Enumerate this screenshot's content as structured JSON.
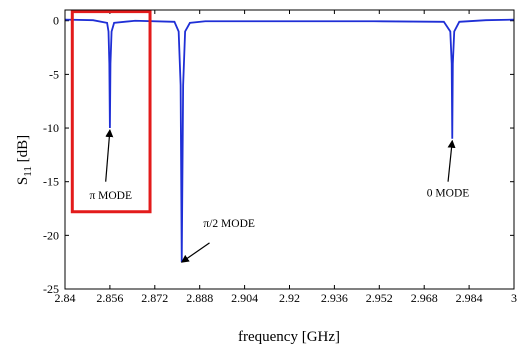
{
  "chart_data": {
    "type": "line",
    "title": "",
    "xlabel": "frequency [GHz]",
    "ylabel": "S",
    "ylabel_subscript": "11",
    "ylabel_unit": " [dB]",
    "xlim": [
      2.84,
      3.0
    ],
    "ylim": [
      -25,
      1
    ],
    "xticks": [
      2.84,
      2.856,
      2.872,
      2.888,
      2.904,
      2.92,
      2.936,
      2.952,
      2.968,
      2.984,
      3.0
    ],
    "xtick_labels": [
      "2.84",
      "2.856",
      "2.872",
      "2.888",
      "2.904",
      "2.92",
      "2.936",
      "2.952",
      "2.968",
      "2.984",
      "3"
    ],
    "yticks": [
      0,
      -5,
      -10,
      -15,
      -20,
      -25
    ],
    "ytick_labels": [
      "0",
      "-5",
      "-10",
      "-15",
      "-20",
      "-25"
    ],
    "grid": false,
    "line_color": "#1f2fd6",
    "highlight_box_color": "#e31b1b",
    "series": [
      {
        "values": [
          {
            "x": 2.84,
            "y": 0.1
          },
          {
            "x": 2.85,
            "y": 0.05
          },
          {
            "x": 2.855,
            "y": -0.2
          },
          {
            "x": 2.8555,
            "y": -1.0
          },
          {
            "x": 2.8558,
            "y": -4.0
          },
          {
            "x": 2.856,
            "y": -10.0
          },
          {
            "x": 2.8562,
            "y": -4.0
          },
          {
            "x": 2.8566,
            "y": -1.0
          },
          {
            "x": 2.8575,
            "y": -0.2
          },
          {
            "x": 2.865,
            "y": 0.0
          },
          {
            "x": 2.879,
            "y": -0.1
          },
          {
            "x": 2.8805,
            "y": -1.0
          },
          {
            "x": 2.8812,
            "y": -6.0
          },
          {
            "x": 2.8816,
            "y": -22.5
          },
          {
            "x": 2.8821,
            "y": -6.0
          },
          {
            "x": 2.8828,
            "y": -1.0
          },
          {
            "x": 2.8845,
            "y": -0.2
          },
          {
            "x": 2.89,
            "y": -0.05
          },
          {
            "x": 2.92,
            "y": -0.05
          },
          {
            "x": 2.95,
            "y": -0.05
          },
          {
            "x": 2.975,
            "y": -0.1
          },
          {
            "x": 2.9773,
            "y": -1.0
          },
          {
            "x": 2.9778,
            "y": -4.0
          },
          {
            "x": 2.978,
            "y": -11.0
          },
          {
            "x": 2.9782,
            "y": -4.0
          },
          {
            "x": 2.9787,
            "y": -1.0
          },
          {
            "x": 2.9805,
            "y": -0.1
          },
          {
            "x": 2.99,
            "y": 0.05
          },
          {
            "x": 3.0,
            "y": 0.1
          }
        ]
      }
    ],
    "annotations": [
      {
        "text": "π MODE",
        "x": 2.856,
        "y": -10.0
      },
      {
        "text": "π/2 MODE",
        "x": 2.8816,
        "y": -22.5
      },
      {
        "text": "0 MODE",
        "x": 2.978,
        "y": -11.0
      }
    ]
  }
}
